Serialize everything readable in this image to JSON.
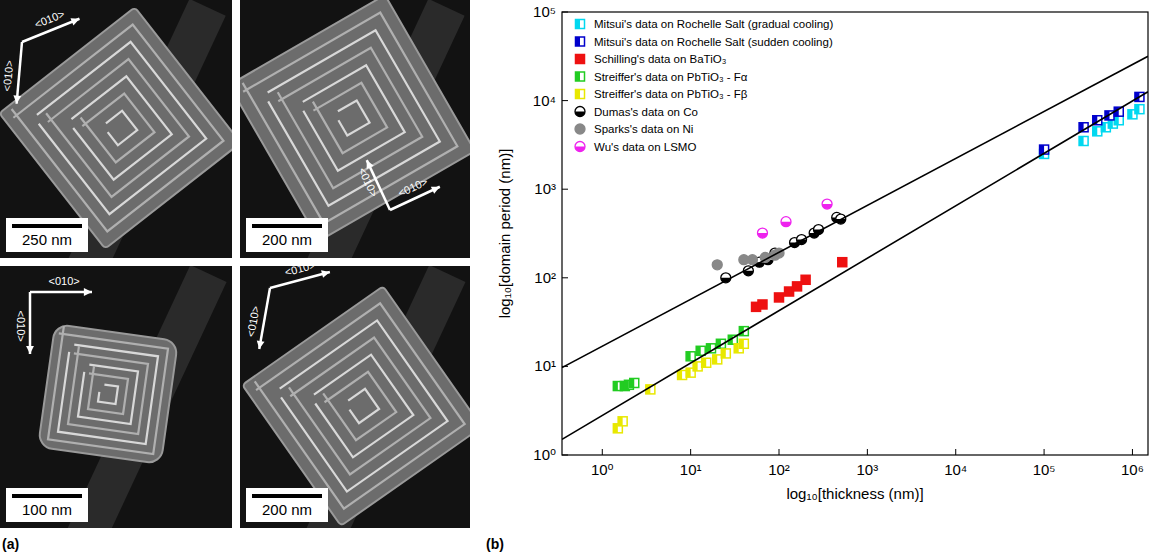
{
  "panel_labels": [
    "(a)",
    "(b)"
  ],
  "images": {
    "tiles": [
      {
        "scale_bar": "250 nm",
        "axis_labels": [
          "<010>",
          "<010>"
        ]
      },
      {
        "scale_bar": "200 nm",
        "axis_labels": [
          "<010>",
          "<010>"
        ]
      },
      {
        "scale_bar": "100 nm",
        "axis_labels": [
          "<010>",
          "<010>"
        ]
      },
      {
        "scale_bar": "200 nm",
        "axis_labels": [
          "<010>",
          "<010>"
        ]
      }
    ]
  },
  "chart_data": {
    "type": "scatter",
    "x_label": "log₁₀[thickness (nm)]",
    "y_label": "log₁₀[domain period (nm)]",
    "log": true,
    "grid": false,
    "legend": "upper left",
    "xlim": [
      0.35,
      1500000
    ],
    "ylim": [
      1,
      100000
    ],
    "xticks": [
      {
        "value": 1,
        "label": "10⁰"
      },
      {
        "value": 10,
        "label": "10¹"
      },
      {
        "value": 100,
        "label": "10²"
      },
      {
        "value": 1000,
        "label": "10³"
      },
      {
        "value": 10000,
        "label": "10⁴"
      },
      {
        "value": 100000,
        "label": "10⁵"
      },
      {
        "value": 1000000,
        "label": "10⁶"
      }
    ],
    "yticks": [
      {
        "value": 1,
        "label": "10⁰"
      },
      {
        "value": 10,
        "label": "10¹"
      },
      {
        "value": 100,
        "label": "10²"
      },
      {
        "value": 1000,
        "label": "10³"
      },
      {
        "value": 10000,
        "label": "10⁴"
      },
      {
        "value": 100000,
        "label": "10⁵"
      }
    ],
    "series": [
      {
        "name": "Mitsui's data on Rochelle Salt (gradual cooling)",
        "color": "#00d8f0",
        "marker": "square-half",
        "x": [
          100000,
          280000,
          400000,
          500000,
          600000,
          700000,
          1000000,
          1200000
        ],
        "values": [
          2500,
          3500,
          4500,
          5000,
          5500,
          6000,
          7000,
          8000
        ]
      },
      {
        "name": "Mitsui's data on Rochelle Salt (sudden cooling)",
        "color": "#0000cc",
        "marker": "square-half",
        "x": [
          100000,
          280000,
          400000,
          550000,
          700000,
          1200000
        ],
        "values": [
          2800,
          5000,
          6000,
          6800,
          7500,
          11000
        ]
      },
      {
        "name": "Schilling's data on BaTiO₃",
        "color": "#ee1111",
        "marker": "square",
        "x": [
          55,
          65,
          100,
          130,
          160,
          200,
          520
        ],
        "values": [
          47,
          50,
          60,
          70,
          80,
          95,
          150
        ]
      },
      {
        "name": "Streiffer's data on PbTiO₃ - Fα",
        "color": "#22cc22",
        "marker": "square-half",
        "x": [
          1.5,
          1.8,
          2,
          2.3,
          10,
          13,
          17,
          22,
          30,
          40
        ],
        "values": [
          6,
          6,
          6.2,
          6.5,
          13,
          15,
          16,
          18,
          20,
          25
        ]
      },
      {
        "name": "Streiffer's data on PbTiO₃ - Fβ",
        "color": "#e8e800",
        "marker": "square-half",
        "x": [
          1.5,
          1.7,
          3.5,
          8,
          10,
          12,
          15,
          20,
          25,
          35,
          40
        ],
        "values": [
          2,
          2.4,
          5.5,
          8,
          8.5,
          10,
          11,
          12,
          14,
          16,
          18
        ]
      },
      {
        "name": "Dumas's data on Co",
        "color": "#000000",
        "marker": "circle-half",
        "x": [
          25,
          45,
          60,
          75,
          90,
          150,
          180,
          250,
          280,
          450,
          500
        ],
        "values": [
          100,
          120,
          150,
          160,
          190,
          250,
          270,
          320,
          350,
          480,
          460
        ]
      },
      {
        "name": "Sparks's data on Ni",
        "color": "#888888",
        "marker": "circle",
        "x": [
          20,
          40,
          50,
          70,
          90,
          100
        ],
        "values": [
          140,
          160,
          160,
          170,
          180,
          190
        ]
      },
      {
        "name": "Wu's data on LSMO",
        "color": "#ee22ee",
        "marker": "circle-half",
        "x": [
          65,
          120,
          350
        ],
        "values": [
          320,
          430,
          680
        ]
      },
      {
        "type": "line",
        "color": "#000000",
        "line_style": "solid",
        "x": [
          0.35,
          1500000
        ],
        "values": [
          9.7,
          31600
        ]
      },
      {
        "type": "line",
        "color": "#000000",
        "line_style": "solid",
        "x": [
          0.35,
          1500000
        ],
        "values": [
          1.5,
          12600
        ]
      }
    ]
  }
}
